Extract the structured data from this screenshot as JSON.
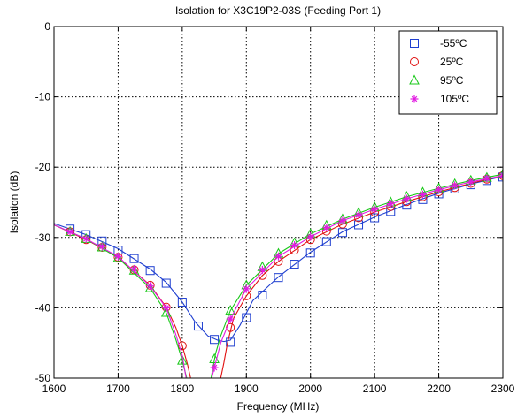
{
  "chart_data": {
    "type": "line",
    "title": "Isolation for X3C19P2-03S (Feeding Port 1)",
    "xlabel": "Frequency (MHz)",
    "ylabel": "Isolation (dB)",
    "xlim": [
      1600,
      2300
    ],
    "ylim": [
      -50,
      0
    ],
    "x_ticks": [
      1600,
      1700,
      1800,
      1900,
      2000,
      2100,
      2200,
      2300
    ],
    "y_ticks": [
      -50,
      -40,
      -30,
      -20,
      -10,
      0
    ],
    "grid": true,
    "legend_position": "top-right",
    "series": [
      {
        "name": "-55ºC",
        "color": "#1f3fd0",
        "marker": "square",
        "markers_x": [
          1625,
          1650,
          1675,
          1700,
          1725,
          1750,
          1775,
          1800,
          1825,
          1850,
          1875,
          1900,
          1925,
          1950,
          1975,
          2000,
          2025,
          2050,
          2075,
          2100,
          2125,
          2150,
          2175,
          2200,
          2225,
          2250,
          2275,
          2300
        ],
        "markers_y": [
          -28.8,
          -29.6,
          -30.5,
          -31.8,
          -33.0,
          -34.7,
          -36.5,
          -39.2,
          -42.6,
          -44.5,
          -44.9,
          -41.4,
          -38.2,
          -35.7,
          -33.8,
          -32.2,
          -30.6,
          -29.3,
          -28.2,
          -27.2,
          -26.3,
          -25.4,
          -24.6,
          -23.8,
          -23.1,
          -22.5,
          -21.9,
          -21.4
        ],
        "curve_x": [
          1600,
          1650,
          1700,
          1750,
          1775,
          1800,
          1820,
          1840,
          1855,
          1865,
          1875,
          1890,
          1910,
          1950,
          2000,
          2050,
          2100,
          2150,
          2200,
          2250,
          2300
        ],
        "curve_y": [
          -28.0,
          -29.6,
          -31.6,
          -34.5,
          -36.4,
          -39.2,
          -42.0,
          -44.0,
          -44.6,
          -44.8,
          -44.6,
          -42.5,
          -39.0,
          -35.6,
          -32.1,
          -29.2,
          -27.1,
          -25.3,
          -23.7,
          -22.4,
          -21.3
        ]
      },
      {
        "name": "25ºC",
        "color": "#e01010",
        "marker": "circle",
        "markers_x": [
          1625,
          1650,
          1675,
          1700,
          1725,
          1750,
          1775,
          1800,
          1875,
          1900,
          1925,
          1950,
          1975,
          2000,
          2025,
          2050,
          2075,
          2100,
          2125,
          2150,
          2175,
          2200,
          2225,
          2250,
          2275,
          2300
        ],
        "markers_y": [
          -29.2,
          -30.3,
          -31.4,
          -32.8,
          -34.6,
          -36.8,
          -39.9,
          -45.4,
          -42.8,
          -38.3,
          -35.4,
          -33.4,
          -31.8,
          -30.3,
          -29.1,
          -28.1,
          -27.2,
          -26.4,
          -25.6,
          -24.9,
          -24.2,
          -23.5,
          -22.9,
          -22.3,
          -21.7,
          -21.2
        ],
        "curve_x": [
          1600,
          1650,
          1700,
          1750,
          1775,
          1790,
          1800,
          1808,
          1813,
          1860,
          1865,
          1870,
          1880,
          1900,
          1925,
          1950,
          2000,
          2050,
          2100,
          2150,
          2200,
          2250,
          2300
        ],
        "curve_y": [
          -28.2,
          -30.3,
          -32.8,
          -36.8,
          -39.9,
          -42.8,
          -45.4,
          -48.0,
          -50.0,
          -50.0,
          -47.8,
          -45.2,
          -41.5,
          -38.3,
          -35.4,
          -33.4,
          -30.3,
          -28.1,
          -26.4,
          -24.9,
          -23.5,
          -22.3,
          -21.2
        ]
      },
      {
        "name": "95ºC",
        "color": "#18c818",
        "marker": "triangle",
        "markers_x": [
          1625,
          1650,
          1675,
          1700,
          1725,
          1750,
          1775,
          1800,
          1850,
          1875,
          1900,
          1925,
          1950,
          1975,
          2000,
          2025,
          2050,
          2075,
          2100,
          2125,
          2150,
          2175,
          2200,
          2225,
          2250,
          2275,
          2300
        ],
        "markers_y": [
          -29.2,
          -30.2,
          -31.4,
          -32.9,
          -34.7,
          -37.2,
          -40.7,
          -47.5,
          -47.3,
          -40.4,
          -36.8,
          -34.2,
          -32.3,
          -30.8,
          -29.5,
          -28.3,
          -27.4,
          -26.5,
          -25.7,
          -25.0,
          -24.2,
          -23.6,
          -23.0,
          -22.4,
          -21.9,
          -21.5,
          -21.0
        ],
        "curve_x": [
          1600,
          1650,
          1700,
          1750,
          1775,
          1790,
          1800,
          1807,
          1845,
          1852,
          1860,
          1875,
          1900,
          1950,
          2000,
          2050,
          2100,
          2150,
          2200,
          2250,
          2300
        ],
        "curve_y": [
          -28.2,
          -30.2,
          -32.9,
          -37.2,
          -40.7,
          -44.5,
          -47.5,
          -50.0,
          -50.0,
          -46.5,
          -44.0,
          -40.4,
          -36.8,
          -32.3,
          -29.5,
          -27.4,
          -25.7,
          -24.2,
          -23.0,
          -21.9,
          -21.0
        ]
      },
      {
        "name": "105ºC",
        "color": "#e21ce2",
        "marker": "star",
        "markers_x": [
          1625,
          1650,
          1675,
          1700,
          1725,
          1750,
          1775,
          1850,
          1875,
          1900,
          1925,
          1950,
          1975,
          2000,
          2025,
          2050,
          2075,
          2100,
          2125,
          2150,
          2175,
          2200,
          2225,
          2250,
          2275,
          2300
        ],
        "markers_y": [
          -29.2,
          -30.2,
          -31.3,
          -32.7,
          -34.5,
          -36.9,
          -40.0,
          -48.5,
          -41.6,
          -37.3,
          -34.6,
          -32.7,
          -31.1,
          -29.9,
          -28.6,
          -27.6,
          -26.8,
          -26.0,
          -25.2,
          -24.5,
          -23.9,
          -23.2,
          -22.6,
          -22.1,
          -21.6,
          -21.2
        ],
        "curve_x": [
          1600,
          1650,
          1700,
          1750,
          1775,
          1790,
          1800,
          1806,
          1846,
          1850,
          1860,
          1875,
          1900,
          1950,
          2000,
          2050,
          2100,
          2150,
          2200,
          2250,
          2300
        ],
        "curve_y": [
          -28.2,
          -30.2,
          -32.7,
          -36.9,
          -40.0,
          -43.8,
          -46.8,
          -50.0,
          -50.0,
          -48.5,
          -45.0,
          -41.6,
          -37.3,
          -32.7,
          -29.9,
          -27.6,
          -26.0,
          -24.5,
          -23.2,
          -22.1,
          -21.2
        ]
      }
    ]
  }
}
